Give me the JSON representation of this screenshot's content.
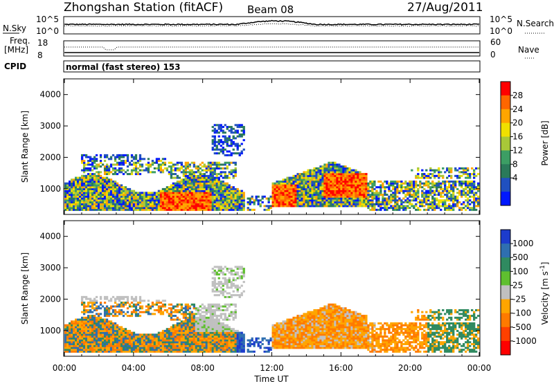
{
  "header": {
    "title": "Zhongshan Station (fitACF)",
    "beam": "Beam 08",
    "date": "27/Aug/2011"
  },
  "noise_panel": {
    "left_label": "N.Sky",
    "right_label": "N.Search",
    "left_ticks": [
      "10^5",
      "10^0"
    ],
    "right_ticks": [
      "10^5",
      "10^0"
    ]
  },
  "freq_panel": {
    "left_label_1": "Freq.",
    "left_label_2": "[MHz]",
    "right_label": "Nave",
    "left_ticks": [
      "18",
      "8"
    ],
    "right_ticks": [
      "60",
      "0"
    ]
  },
  "cpid": {
    "label": "CPID",
    "value": "normal (fast stereo) 153"
  },
  "chart_data": [
    {
      "type": "heatmap",
      "name": "power",
      "ylabel": "Slant Range [km]",
      "y_ticks": [
        "1000",
        "2000",
        "3000",
        "4000"
      ],
      "ylim": [
        180,
        4500
      ],
      "colorbar_label": "Power [dB]",
      "colorbar_ticks": [
        "28",
        "24",
        "20",
        "16",
        "12",
        "8",
        "4"
      ],
      "colorbar_colors": [
        "#ff0000",
        "#ff6600",
        "#ffa500",
        "#f0e000",
        "#a8c838",
        "#3c9e64",
        "#2a7a5a",
        "#2050c0",
        "#0018ff"
      ],
      "series_colors": [
        "#0018ff",
        "#2050c0",
        "#2a7a5a",
        "#3c9e64",
        "#a8c838",
        "#f0e000",
        "#ffa500",
        "#ff6600",
        "#ff0000"
      ]
    },
    {
      "type": "heatmap",
      "name": "velocity",
      "ylabel": "Slant Range [km]",
      "y_ticks": [
        "1000",
        "2000",
        "3000",
        "4000"
      ],
      "ylim": [
        180,
        4500
      ],
      "colorbar_label": "Velocity [m s^-1]",
      "colorbar_ticks": [
        "1000",
        "500",
        "100",
        "25",
        "-25",
        "-100",
        "-500",
        "-1000"
      ],
      "colorbar_colors": [
        "#1c3ccc",
        "#2f6fb0",
        "#2f8a60",
        "#5fbf2f",
        "#c0c0c0",
        "#ffa500",
        "#ff7a00",
        "#ff4000",
        "#ff0000"
      ],
      "x_ticks": [
        "00:00",
        "04:00",
        "08:00",
        "12:00",
        "16:00",
        "20:00",
        "00:00"
      ],
      "xlabel": "Time UT"
    }
  ]
}
